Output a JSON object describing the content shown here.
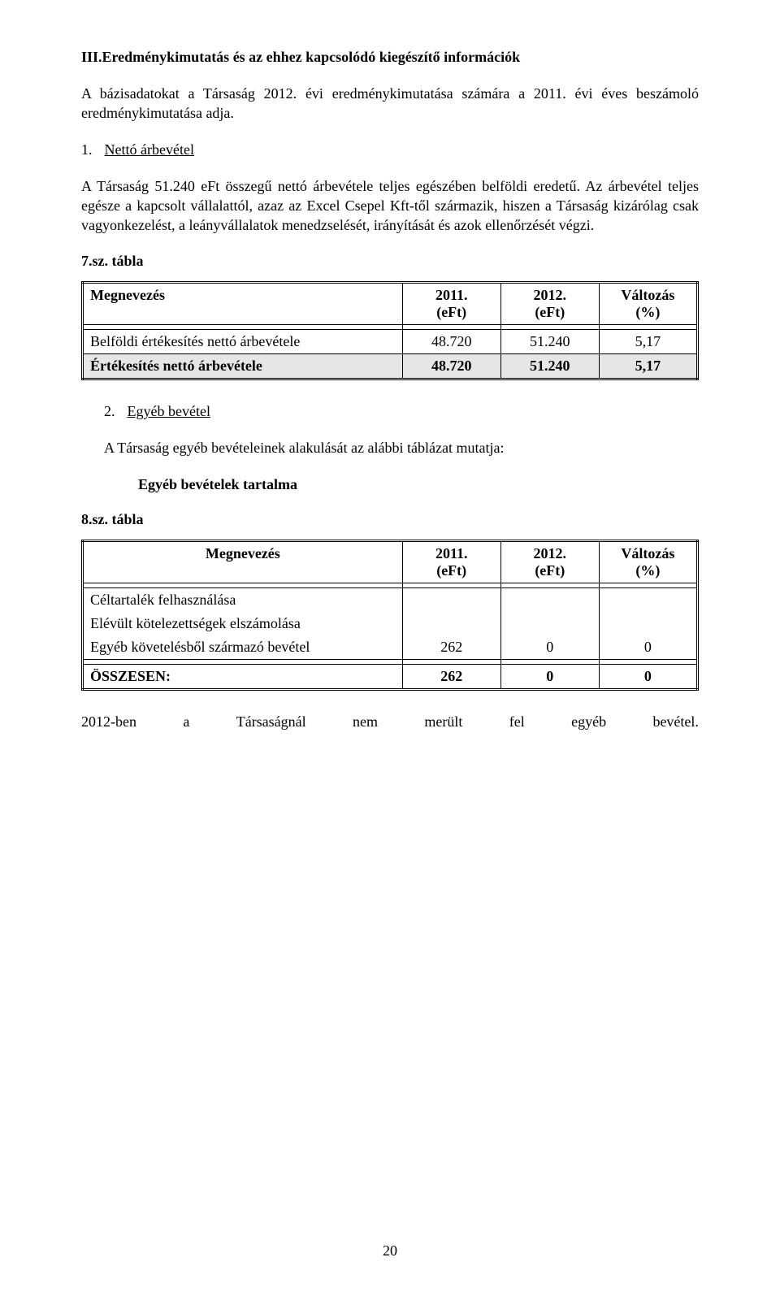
{
  "section": {
    "title": "III.Eredménykimutatás és az ehhez kapcsolódó kiegészítő információk",
    "intro": "A bázisadatokat a Társaság 2012. évi eredménykimutatása számára a 2011. évi éves beszámoló eredménykimutatása adja."
  },
  "h1": {
    "num": "1.",
    "text": "Nettó árbevétel"
  },
  "p1": "A Társaság 51.240 eFt összegű nettó árbevétele teljes egészében belföldi eredetű. Az árbevétel teljes egésze a kapcsolt vállalattól, azaz az Excel Csepel Kft-től származik, hiszen a Társaság kizárólag csak vagyonkezelést, a leányvállalatok menedzselését, irányítását és azok ellenőrzését végzi.",
  "t7": {
    "label": "7.sz. tábla",
    "columns": [
      "Megnevezés",
      "2011.\n(eFt)",
      "2012.\n(eFt)",
      "Változás\n(%)"
    ],
    "rows": [
      {
        "name": "Belföldi értékesítés nettó árbevétele",
        "v1": "48.720",
        "v2": "51.240",
        "v3": "5,17",
        "bold": false
      },
      {
        "name": "Értékesítés nettó árbevétele",
        "v1": "48.720",
        "v2": "51.240",
        "v3": "5,17",
        "bold": true
      }
    ]
  },
  "h2": {
    "num": "2.",
    "text": "Egyéb bevétel"
  },
  "p2": "A Társaság egyéb bevételeinek alakulását az alábbi táblázat mutatja:",
  "sub": "Egyéb bevételek tartalma",
  "t8": {
    "label": "8.sz. tábla",
    "columns": [
      "Megnevezés",
      "2011.\n(eFt)",
      "2012.\n(eFt)",
      "Változás\n(%)"
    ],
    "rows": [
      {
        "name": "Céltartalék felhasználása",
        "v1": "",
        "v2": "",
        "v3": ""
      },
      {
        "name": "Elévült kötelezettségek elszámolása",
        "v1": "",
        "v2": "",
        "v3": ""
      },
      {
        "name": "Egyéb követelésből származó bevétel",
        "v1": "262",
        "v2": "0",
        "v3": "0"
      }
    ],
    "total": {
      "name": "ÖSSZESEN:",
      "v1": "262",
      "v2": "0",
      "v3": "0"
    }
  },
  "closing": [
    "2012-ben",
    "a",
    "Társaságnál",
    "nem",
    "merült",
    "fel",
    "egyéb",
    "bevétel."
  ],
  "page": "20"
}
